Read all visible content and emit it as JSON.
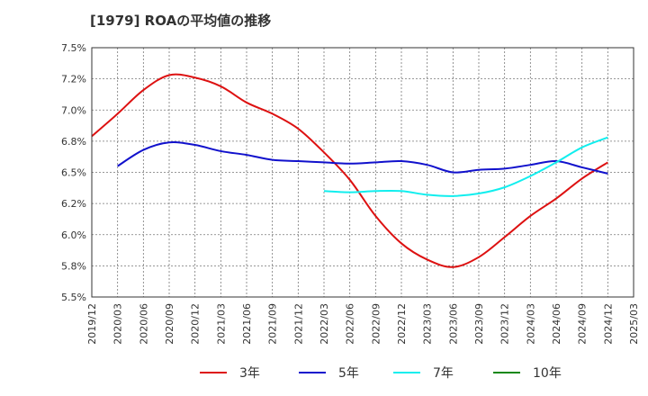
{
  "title": "[1979]  ROAの平均値の推移",
  "chart_data": {
    "type": "line",
    "title": "[1979]  ROAの平均値の推移",
    "xlabel": "",
    "ylabel": "",
    "x": [
      "2019/12",
      "2020/03",
      "2020/06",
      "2020/09",
      "2020/12",
      "2021/03",
      "2021/06",
      "2021/09",
      "2021/12",
      "2022/03",
      "2022/06",
      "2022/09",
      "2022/12",
      "2023/03",
      "2023/06",
      "2023/09",
      "2023/12",
      "2024/03",
      "2024/06",
      "2024/09",
      "2024/12",
      "2025/03"
    ],
    "y_ticks": [
      "5.5%",
      "5.8%",
      "6.0%",
      "6.2%",
      "6.5%",
      "6.8%",
      "7.0%",
      "7.2%",
      "7.5%"
    ],
    "ylim": [
      5.5,
      7.5
    ],
    "grid": true,
    "legend_position": "bottom",
    "series": [
      {
        "name": "3年",
        "color": "#dd1111",
        "values": [
          6.79,
          6.97,
          7.16,
          7.28,
          7.26,
          7.19,
          7.06,
          6.97,
          6.85,
          6.66,
          6.44,
          6.15,
          5.93,
          5.8,
          5.74,
          5.82,
          5.98,
          6.15,
          6.29,
          6.45,
          6.58,
          null
        ]
      },
      {
        "name": "5年",
        "color": "#1111cc",
        "values": [
          null,
          6.55,
          6.68,
          6.74,
          6.72,
          6.67,
          6.64,
          6.6,
          6.59,
          6.58,
          6.57,
          6.58,
          6.59,
          6.56,
          6.5,
          6.52,
          6.53,
          6.56,
          6.59,
          6.54,
          6.49,
          null
        ]
      },
      {
        "name": "7年",
        "color": "#11eeee",
        "values": [
          null,
          null,
          null,
          null,
          null,
          null,
          null,
          null,
          null,
          6.35,
          6.34,
          6.35,
          6.35,
          6.32,
          6.31,
          6.33,
          6.38,
          6.47,
          6.58,
          6.7,
          6.78,
          null
        ]
      },
      {
        "name": "10年",
        "color": "#118811",
        "values": [
          null,
          null,
          null,
          null,
          null,
          null,
          null,
          null,
          null,
          null,
          null,
          null,
          null,
          null,
          null,
          null,
          null,
          null,
          null,
          null,
          null,
          null
        ]
      }
    ]
  }
}
